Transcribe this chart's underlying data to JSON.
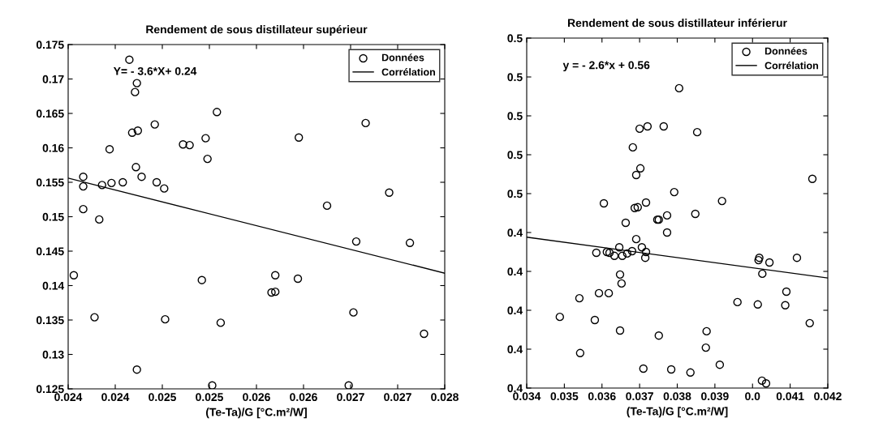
{
  "chart_data": [
    {
      "type": "scatter",
      "title": "Rendement de sous distillateur supérieur",
      "xlabel": "(Te-Ta)/G [°C.m²/W]",
      "annotations": [
        "Y= - 3.6*X+ 0.24"
      ],
      "xlim": [
        0.024,
        0.028
      ],
      "xticks": [
        {
          "value": 0.024,
          "label": "0.024"
        },
        {
          "value": 0.0245,
          "label": "0.024"
        },
        {
          "value": 0.025,
          "label": "0.025"
        },
        {
          "value": 0.0255,
          "label": "0.025"
        },
        {
          "value": 0.026,
          "label": "0.026"
        },
        {
          "value": 0.0265,
          "label": "0.026"
        },
        {
          "value": 0.027,
          "label": "0.027"
        },
        {
          "value": 0.0275,
          "label": "0.027"
        },
        {
          "value": 0.028,
          "label": "0.028"
        }
      ],
      "ylim": [
        0.125,
        0.175
      ],
      "yticks": [
        0.125,
        0.13,
        0.135,
        0.14,
        0.145,
        0.15,
        0.155,
        0.16,
        0.165,
        0.17,
        0.175
      ],
      "grid": false,
      "legend": "top right",
      "series": [
        {
          "name": "Données",
          "marker": "circle",
          "color": "#000000",
          "x": [
            0.02465,
            0.02473,
            0.02471,
            0.02558,
            0.02492,
            0.02468,
            0.02474,
            0.02716,
            0.02444,
            0.02522,
            0.02529,
            0.02546,
            0.02645,
            0.02548,
            0.02472,
            0.02478,
            0.02416,
            0.02416,
            0.02436,
            0.02446,
            0.02458,
            0.02494,
            0.02502,
            0.02741,
            0.02416,
            0.02675,
            0.02433,
            0.02706,
            0.02763,
            0.02406,
            0.02542,
            0.0262,
            0.02644,
            0.02616,
            0.0262,
            0.02428,
            0.02503,
            0.02562,
            0.02703,
            0.02778,
            0.02473,
            0.02553,
            0.02698
          ],
          "values": [
            0.1728,
            0.1694,
            0.1681,
            0.1652,
            0.1634,
            0.1622,
            0.1625,
            0.1636,
            0.1598,
            0.1605,
            0.1604,
            0.1614,
            0.1615,
            0.1584,
            0.1572,
            0.1558,
            0.1558,
            0.1544,
            0.1546,
            0.1549,
            0.155,
            0.155,
            0.1541,
            0.1535,
            0.1511,
            0.1516,
            0.1496,
            0.1464,
            0.1462,
            0.1415,
            0.1408,
            0.1415,
            0.141,
            0.139,
            0.1391,
            0.1354,
            0.1351,
            0.1346,
            0.1361,
            0.133,
            0.1278,
            0.1255,
            0.1255
          ]
        },
        {
          "name": "Corrélation",
          "type": "line",
          "marker": "none",
          "line_style": "solid",
          "color": "#000000",
          "x": [
            0.024,
            0.028
          ],
          "values": [
            0.1556,
            0.1418
          ]
        }
      ]
    },
    {
      "type": "scatter",
      "title": "Rendement de sous distillateur inférierur",
      "xlabel": "(Te-Ta)/G [°C.m²/W]",
      "annotations": [
        "y = - 2.6*x + 0.56"
      ],
      "xlim": [
        0.034,
        0.042
      ],
      "xticks": [
        0.034,
        0.035,
        0.036,
        0.037,
        0.038,
        0.039,
        {
          "value": 0.04,
          "label": "0.0"
        },
        0.041,
        0.042
      ],
      "ylim": [
        0.4,
        0.49
      ],
      "yticks": [
        {
          "value": 0.4,
          "label": "0.4"
        },
        {
          "value": 0.41,
          "label": "0.4"
        },
        {
          "value": 0.42,
          "label": "0.4"
        },
        {
          "value": 0.43,
          "label": "0.4"
        },
        {
          "value": 0.44,
          "label": "0.4"
        },
        {
          "value": 0.45,
          "label": "0.5"
        },
        {
          "value": 0.46,
          "label": "0.5"
        },
        {
          "value": 0.47,
          "label": "0.5"
        },
        {
          "value": 0.48,
          "label": "0.5"
        },
        {
          "value": 0.49,
          "label": "0.5"
        }
      ],
      "grid": false,
      "legend": "top right",
      "series": [
        {
          "name": "Données",
          "marker": "circle",
          "color": "#000000",
          "x": [
            0.03805,
            0.037,
            0.03721,
            0.03764,
            0.03853,
            0.03682,
            0.03702,
            0.03691,
            0.04159,
            0.03792,
            0.03605,
            0.03687,
            0.03695,
            0.03717,
            0.03773,
            0.03747,
            0.03751,
            0.03848,
            0.03919,
            0.03663,
            0.03773,
            0.03691,
            0.03646,
            0.03706,
            0.03585,
            0.03613,
            0.0362,
            0.03633,
            0.03654,
            0.03667,
            0.0368,
            0.03717,
            0.03715,
            0.04018,
            0.04016,
            0.04118,
            0.04045,
            0.04026,
            0.03648,
            0.03652,
            0.0354,
            0.03592,
            0.03618,
            0.0409,
            0.0396,
            0.04014,
            0.04087,
            0.03488,
            0.03581,
            0.04152,
            0.03648,
            0.03751,
            0.03878,
            0.03876,
            0.03542,
            0.03913,
            0.0371,
            0.03784,
            0.03835,
            0.04025,
            0.04036
          ],
          "values": [
            0.4771,
            0.4667,
            0.4673,
            0.4673,
            0.4658,
            0.4619,
            0.4565,
            0.4548,
            0.4538,
            0.4504,
            0.4475,
            0.4463,
            0.4465,
            0.4477,
            0.4444,
            0.4433,
            0.4433,
            0.4448,
            0.4481,
            0.4425,
            0.44,
            0.4383,
            0.4362,
            0.4362,
            0.4348,
            0.435,
            0.4348,
            0.434,
            0.434,
            0.4346,
            0.4352,
            0.435,
            0.4335,
            0.4335,
            0.4329,
            0.4335,
            0.4323,
            0.4294,
            0.4292,
            0.4269,
            0.4231,
            0.4244,
            0.4244,
            0.4248,
            0.4221,
            0.4215,
            0.4213,
            0.4183,
            0.4175,
            0.4167,
            0.4148,
            0.4135,
            0.4146,
            0.4104,
            0.409,
            0.406,
            0.405,
            0.4048,
            0.404,
            0.4019,
            0.4012
          ]
        },
        {
          "name": "Corrélation",
          "type": "line",
          "marker": "none",
          "line_style": "solid",
          "color": "#000000",
          "x": [
            0.034,
            0.042
          ],
          "values": [
            0.4388,
            0.4283
          ]
        }
      ]
    }
  ]
}
